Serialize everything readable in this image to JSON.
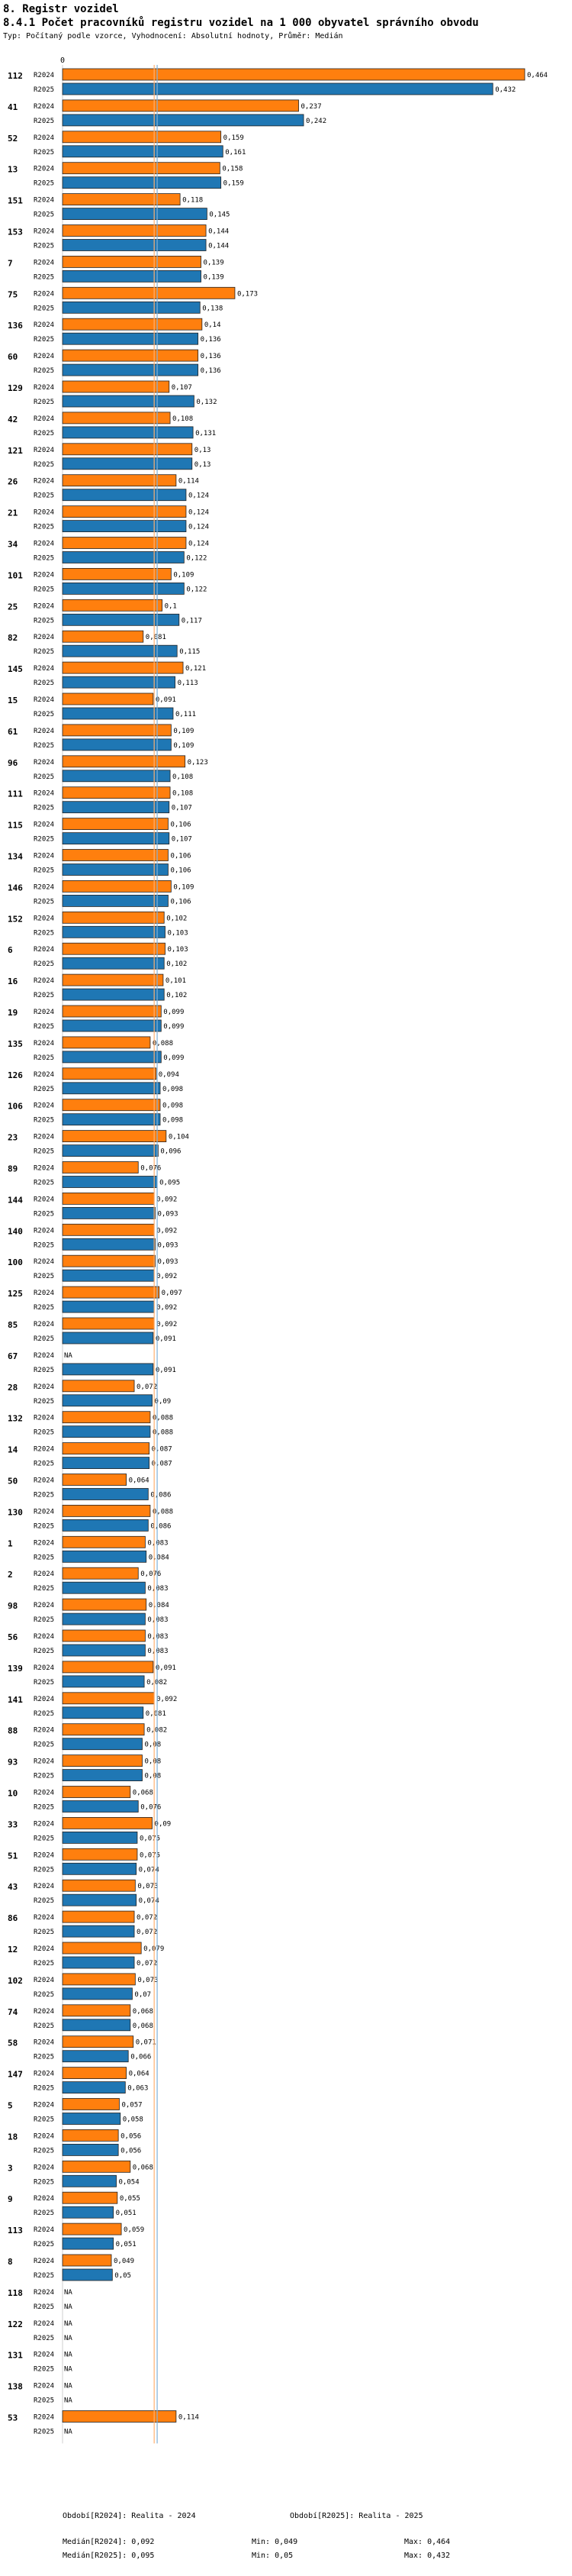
{
  "header": {
    "section": "8. Registr vozidel",
    "title": "8.4.1 Počet pracovníků registru vozidel na 1 000 obyvatel správního obvodu",
    "subtitle": "Typ: Počítaný podle vzorce, Vyhodnocení: Absolutní hodnoty, Průměr: Medián"
  },
  "colors": {
    "r2024": "#ff7f0e",
    "r2025": "#1f77b4",
    "median2024": "#ff7f0e",
    "median2025": "#1f77b4"
  },
  "chart_data": {
    "type": "bar",
    "orientation": "horizontal",
    "xlim": [
      0,
      0.464
    ],
    "axis_ticks": [
      "0"
    ],
    "series_labels": [
      "R2024",
      "R2025"
    ],
    "na_label": "NA",
    "categories": [
      {
        "id": "112",
        "r2024": 0.464,
        "r2025": 0.432,
        "l2024": "0,464",
        "l2025": "0,432"
      },
      {
        "id": "41",
        "r2024": 0.237,
        "r2025": 0.242,
        "l2024": "0,237",
        "l2025": "0,242"
      },
      {
        "id": "52",
        "r2024": 0.159,
        "r2025": 0.161,
        "l2024": "0,159",
        "l2025": "0,161"
      },
      {
        "id": "13",
        "r2024": 0.158,
        "r2025": 0.159,
        "l2024": "0,158",
        "l2025": "0,159"
      },
      {
        "id": "151",
        "r2024": 0.118,
        "r2025": 0.145,
        "l2024": "0,118",
        "l2025": "0,145"
      },
      {
        "id": "153",
        "r2024": 0.144,
        "r2025": 0.144,
        "l2024": "0,144",
        "l2025": "0,144"
      },
      {
        "id": "7",
        "r2024": 0.139,
        "r2025": 0.139,
        "l2024": "0,139",
        "l2025": "0,139"
      },
      {
        "id": "75",
        "r2024": 0.173,
        "r2025": 0.138,
        "l2024": "0,173",
        "l2025": "0,138"
      },
      {
        "id": "136",
        "r2024": 0.14,
        "r2025": 0.136,
        "l2024": "0,14",
        "l2025": "0,136"
      },
      {
        "id": "60",
        "r2024": 0.136,
        "r2025": 0.136,
        "l2024": "0,136",
        "l2025": "0,136"
      },
      {
        "id": "129",
        "r2024": 0.107,
        "r2025": 0.132,
        "l2024": "0,107",
        "l2025": "0,132"
      },
      {
        "id": "42",
        "r2024": 0.108,
        "r2025": 0.131,
        "l2024": "0,108",
        "l2025": "0,131"
      },
      {
        "id": "121",
        "r2024": 0.13,
        "r2025": 0.13,
        "l2024": "0,13",
        "l2025": "0,13"
      },
      {
        "id": "26",
        "r2024": 0.114,
        "r2025": 0.124,
        "l2024": "0,114",
        "l2025": "0,124"
      },
      {
        "id": "21",
        "r2024": 0.124,
        "r2025": 0.124,
        "l2024": "0,124",
        "l2025": "0,124"
      },
      {
        "id": "34",
        "r2024": 0.124,
        "r2025": 0.122,
        "l2024": "0,124",
        "l2025": "0,122"
      },
      {
        "id": "101",
        "r2024": 0.109,
        "r2025": 0.122,
        "l2024": "0,109",
        "l2025": "0,122"
      },
      {
        "id": "25",
        "r2024": 0.1,
        "r2025": 0.117,
        "l2024": "0,1",
        "l2025": "0,117"
      },
      {
        "id": "82",
        "r2024": 0.081,
        "r2025": 0.115,
        "l2024": "0,081",
        "l2025": "0,115"
      },
      {
        "id": "145",
        "r2024": 0.121,
        "r2025": 0.113,
        "l2024": "0,121",
        "l2025": "0,113"
      },
      {
        "id": "15",
        "r2024": 0.091,
        "r2025": 0.111,
        "l2024": "0,091",
        "l2025": "0,111"
      },
      {
        "id": "61",
        "r2024": 0.109,
        "r2025": 0.109,
        "l2024": "0,109",
        "l2025": "0,109"
      },
      {
        "id": "96",
        "r2024": 0.123,
        "r2025": 0.108,
        "l2024": "0,123",
        "l2025": "0,108"
      },
      {
        "id": "111",
        "r2024": 0.108,
        "r2025": 0.107,
        "l2024": "0,108",
        "l2025": "0,107"
      },
      {
        "id": "115",
        "r2024": 0.106,
        "r2025": 0.107,
        "l2024": "0,106",
        "l2025": "0,107"
      },
      {
        "id": "134",
        "r2024": 0.106,
        "r2025": 0.106,
        "l2024": "0,106",
        "l2025": "0,106"
      },
      {
        "id": "146",
        "r2024": 0.109,
        "r2025": 0.106,
        "l2024": "0,109",
        "l2025": "0,106"
      },
      {
        "id": "152",
        "r2024": 0.102,
        "r2025": 0.103,
        "l2024": "0,102",
        "l2025": "0,103"
      },
      {
        "id": "6",
        "r2024": 0.103,
        "r2025": 0.102,
        "l2024": "0,103",
        "l2025": "0,102"
      },
      {
        "id": "16",
        "r2024": 0.101,
        "r2025": 0.102,
        "l2024": "0,101",
        "l2025": "0,102"
      },
      {
        "id": "19",
        "r2024": 0.099,
        "r2025": 0.099,
        "l2024": "0,099",
        "l2025": "0,099"
      },
      {
        "id": "135",
        "r2024": 0.088,
        "r2025": 0.099,
        "l2024": "0,088",
        "l2025": "0,099"
      },
      {
        "id": "126",
        "r2024": 0.094,
        "r2025": 0.098,
        "l2024": "0,094",
        "l2025": "0,098"
      },
      {
        "id": "106",
        "r2024": 0.098,
        "r2025": 0.098,
        "l2024": "0,098",
        "l2025": "0,098"
      },
      {
        "id": "23",
        "r2024": 0.104,
        "r2025": 0.096,
        "l2024": "0,104",
        "l2025": "0,096"
      },
      {
        "id": "89",
        "r2024": 0.076,
        "r2025": 0.095,
        "l2024": "0,076",
        "l2025": "0,095"
      },
      {
        "id": "144",
        "r2024": 0.092,
        "r2025": 0.093,
        "l2024": "0,092",
        "l2025": "0,093"
      },
      {
        "id": "140",
        "r2024": 0.092,
        "r2025": 0.093,
        "l2024": "0,092",
        "l2025": "0,093"
      },
      {
        "id": "100",
        "r2024": 0.093,
        "r2025": 0.092,
        "l2024": "0,093",
        "l2025": "0,092"
      },
      {
        "id": "125",
        "r2024": 0.097,
        "r2025": 0.092,
        "l2024": "0,097",
        "l2025": "0,092"
      },
      {
        "id": "85",
        "r2024": 0.092,
        "r2025": 0.091,
        "l2024": "0,092",
        "l2025": "0,091"
      },
      {
        "id": "67",
        "r2024": null,
        "r2025": 0.091,
        "l2024": "NA",
        "l2025": "0,091"
      },
      {
        "id": "28",
        "r2024": 0.072,
        "r2025": 0.09,
        "l2024": "0,072",
        "l2025": "0,09"
      },
      {
        "id": "132",
        "r2024": 0.088,
        "r2025": 0.088,
        "l2024": "0,088",
        "l2025": "0,088"
      },
      {
        "id": "14",
        "r2024": 0.087,
        "r2025": 0.087,
        "l2024": "0,087",
        "l2025": "0,087"
      },
      {
        "id": "50",
        "r2024": 0.064,
        "r2025": 0.086,
        "l2024": "0,064",
        "l2025": "0,086"
      },
      {
        "id": "130",
        "r2024": 0.088,
        "r2025": 0.086,
        "l2024": "0,088",
        "l2025": "0,086"
      },
      {
        "id": "1",
        "r2024": 0.083,
        "r2025": 0.084,
        "l2024": "0,083",
        "l2025": "0,084"
      },
      {
        "id": "2",
        "r2024": 0.076,
        "r2025": 0.083,
        "l2024": "0,076",
        "l2025": "0,083"
      },
      {
        "id": "98",
        "r2024": 0.084,
        "r2025": 0.083,
        "l2024": "0,084",
        "l2025": "0,083"
      },
      {
        "id": "56",
        "r2024": 0.083,
        "r2025": 0.083,
        "l2024": "0,083",
        "l2025": "0,083"
      },
      {
        "id": "139",
        "r2024": 0.091,
        "r2025": 0.082,
        "l2024": "0,091",
        "l2025": "0,082"
      },
      {
        "id": "141",
        "r2024": 0.092,
        "r2025": 0.081,
        "l2024": "0,092",
        "l2025": "0,081"
      },
      {
        "id": "88",
        "r2024": 0.082,
        "r2025": 0.08,
        "l2024": "0,082",
        "l2025": "0,08"
      },
      {
        "id": "93",
        "r2024": 0.08,
        "r2025": 0.08,
        "l2024": "0,08",
        "l2025": "0,08"
      },
      {
        "id": "10",
        "r2024": 0.068,
        "r2025": 0.076,
        "l2024": "0,068",
        "l2025": "0,076"
      },
      {
        "id": "33",
        "r2024": 0.09,
        "r2025": 0.075,
        "l2024": "0,09",
        "l2025": "0,075"
      },
      {
        "id": "51",
        "r2024": 0.075,
        "r2025": 0.074,
        "l2024": "0,075",
        "l2025": "0,074"
      },
      {
        "id": "43",
        "r2024": 0.073,
        "r2025": 0.074,
        "l2024": "0,073",
        "l2025": "0,074"
      },
      {
        "id": "86",
        "r2024": 0.072,
        "r2025": 0.072,
        "l2024": "0,072",
        "l2025": "0,072"
      },
      {
        "id": "12",
        "r2024": 0.079,
        "r2025": 0.072,
        "l2024": "0,079",
        "l2025": "0,072"
      },
      {
        "id": "102",
        "r2024": 0.073,
        "r2025": 0.07,
        "l2024": "0,073",
        "l2025": "0,07"
      },
      {
        "id": "74",
        "r2024": 0.068,
        "r2025": 0.068,
        "l2024": "0,068",
        "l2025": "0,068"
      },
      {
        "id": "58",
        "r2024": 0.071,
        "r2025": 0.066,
        "l2024": "0,071",
        "l2025": "0,066"
      },
      {
        "id": "147",
        "r2024": 0.064,
        "r2025": 0.063,
        "l2024": "0,064",
        "l2025": "0,063"
      },
      {
        "id": "5",
        "r2024": 0.057,
        "r2025": 0.058,
        "l2024": "0,057",
        "l2025": "0,058"
      },
      {
        "id": "18",
        "r2024": 0.056,
        "r2025": 0.056,
        "l2024": "0,056",
        "l2025": "0,056"
      },
      {
        "id": "3",
        "r2024": 0.068,
        "r2025": 0.054,
        "l2024": "0,068",
        "l2025": "0,054"
      },
      {
        "id": "9",
        "r2024": 0.055,
        "r2025": 0.051,
        "l2024": "0,055",
        "l2025": "0,051"
      },
      {
        "id": "113",
        "r2024": 0.059,
        "r2025": 0.051,
        "l2024": "0,059",
        "l2025": "0,051"
      },
      {
        "id": "8",
        "r2024": 0.049,
        "r2025": 0.05,
        "l2024": "0,049",
        "l2025": "0,05"
      },
      {
        "id": "118",
        "r2024": null,
        "r2025": null,
        "l2024": "NA",
        "l2025": "NA"
      },
      {
        "id": "122",
        "r2024": null,
        "r2025": null,
        "l2024": "NA",
        "l2025": "NA"
      },
      {
        "id": "131",
        "r2024": null,
        "r2025": null,
        "l2024": "NA",
        "l2025": "NA"
      },
      {
        "id": "138",
        "r2024": null,
        "r2025": null,
        "l2024": "NA",
        "l2025": "NA"
      },
      {
        "id": "53",
        "r2024": 0.114,
        "r2025": null,
        "l2024": "0,114",
        "l2025": "NA"
      }
    ],
    "median_2024": 0.092,
    "median_2025": 0.095
  },
  "footer": {
    "period2024": "Období[R2024]: Realita - 2024",
    "period2025": "Období[R2025]: Realita - 2025",
    "median2024": "Medián[R2024]: 0,092",
    "median2025": "Medián[R2025]: 0,095",
    "min2024": "Min: 0,049",
    "min2025": "Min: 0,05",
    "max2024": "Max: 0,464",
    "max2025": "Max: 0,432"
  }
}
